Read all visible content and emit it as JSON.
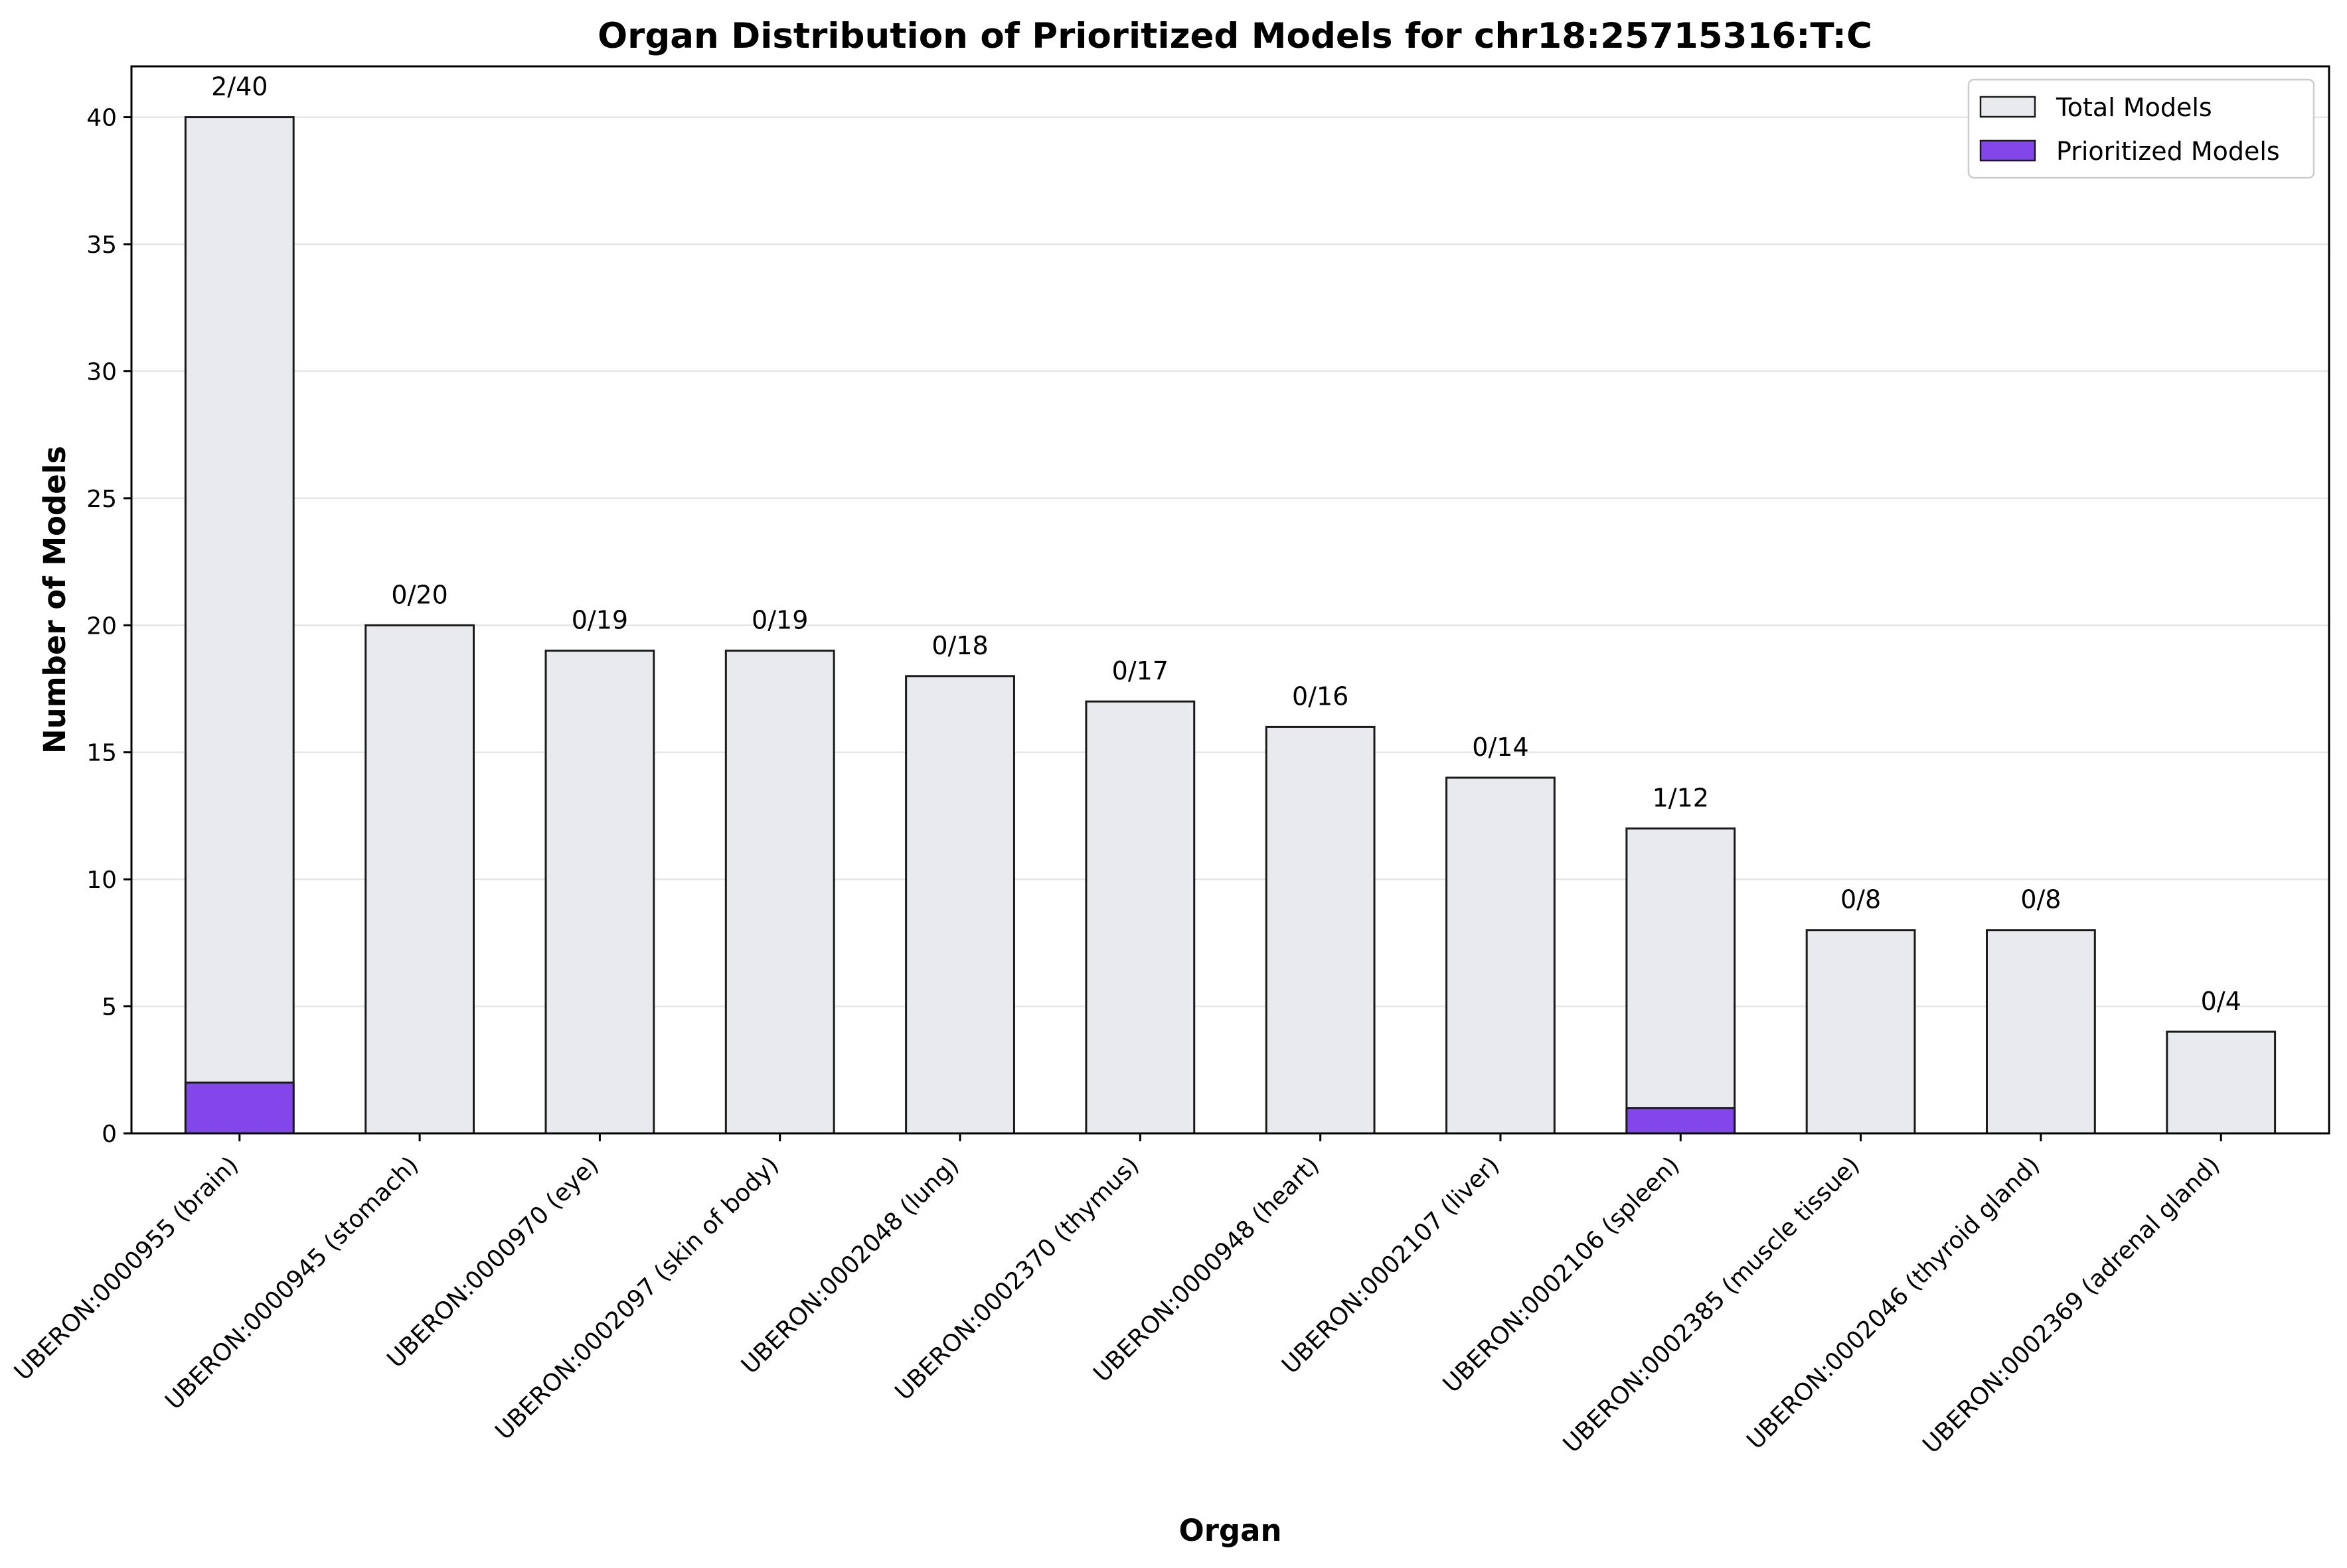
{
  "chart_data": {
    "type": "bar",
    "title": "Organ Distribution of Prioritized Models for chr18:25715316:T:C",
    "xlabel": "Organ",
    "ylabel": "Number of Models",
    "ylim": [
      0,
      42
    ],
    "yticks": [
      0,
      5,
      10,
      15,
      20,
      25,
      30,
      35,
      40
    ],
    "grid": "y-major",
    "legend_position": "top-right",
    "categories": [
      "UBERON:0000955 (brain)",
      "UBERON:0000945 (stomach)",
      "UBERON:0000970 (eye)",
      "UBERON:0002097 (skin of body)",
      "UBERON:0002048 (lung)",
      "UBERON:0002370 (thymus)",
      "UBERON:0000948 (heart)",
      "UBERON:0002107 (liver)",
      "UBERON:0002106 (spleen)",
      "UBERON:0002385 (muscle tissue)",
      "UBERON:0002046 (thyroid gland)",
      "UBERON:0002369 (adrenal gland)"
    ],
    "series": [
      {
        "name": "Total Models",
        "color": "#e9eaee",
        "values": [
          40,
          20,
          19,
          19,
          18,
          17,
          16,
          14,
          12,
          8,
          8,
          4
        ]
      },
      {
        "name": "Prioritized Models",
        "color": "#8246ea",
        "values": [
          2,
          0,
          0,
          0,
          0,
          0,
          0,
          0,
          1,
          0,
          0,
          0
        ]
      }
    ],
    "data_labels": [
      "2/40",
      "0/20",
      "0/19",
      "0/19",
      "0/18",
      "0/17",
      "0/16",
      "0/14",
      "1/12",
      "0/8",
      "0/8",
      "0/4"
    ]
  }
}
